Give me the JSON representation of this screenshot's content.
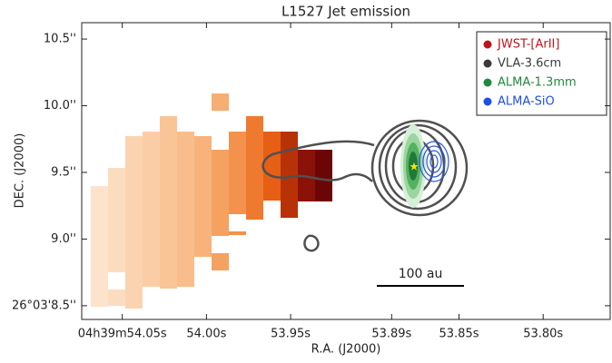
{
  "chart_data": {
    "type": "image-map",
    "title": "L1527 Jet emission",
    "x_label": "R.A. (J2000)",
    "y_label": "DEC. (J2000)",
    "xlim": [
      54.0741,
      53.7602
    ],
    "ylim": [
      8.397,
      10.623
    ],
    "xticks": [
      {
        "value": 54.05,
        "label": "04h39m54.05s"
      },
      {
        "value": 54.0,
        "label": "54.00s"
      },
      {
        "value": 53.95,
        "label": "53.95s"
      },
      {
        "value": 53.89,
        "label": "53.89s"
      },
      {
        "value": 53.85,
        "label": "53.85s"
      },
      {
        "value": 53.8,
        "label": "53.80s"
      }
    ],
    "yticks": [
      {
        "value": 10.5,
        "label": "10.5''"
      },
      {
        "value": 10.0,
        "label": "10.0''"
      },
      {
        "value": 9.5,
        "label": "9.5''"
      },
      {
        "value": 9.0,
        "label": "9.0''"
      },
      {
        "value": 8.5,
        "label": "26°03'8.5''"
      }
    ],
    "series": [
      {
        "name": "JWST-[ArII]",
        "color": "#c0141c"
      },
      {
        "name": "VLA-3.6cm",
        "color": "#3a3a3a"
      },
      {
        "name": "ALMA-1.3mm",
        "color": "#1f8a3a"
      },
      {
        "name": "ALMA-SiO",
        "color": "#1f4fe0"
      }
    ],
    "legend": "upper right",
    "scale_bar": "100 au"
  }
}
